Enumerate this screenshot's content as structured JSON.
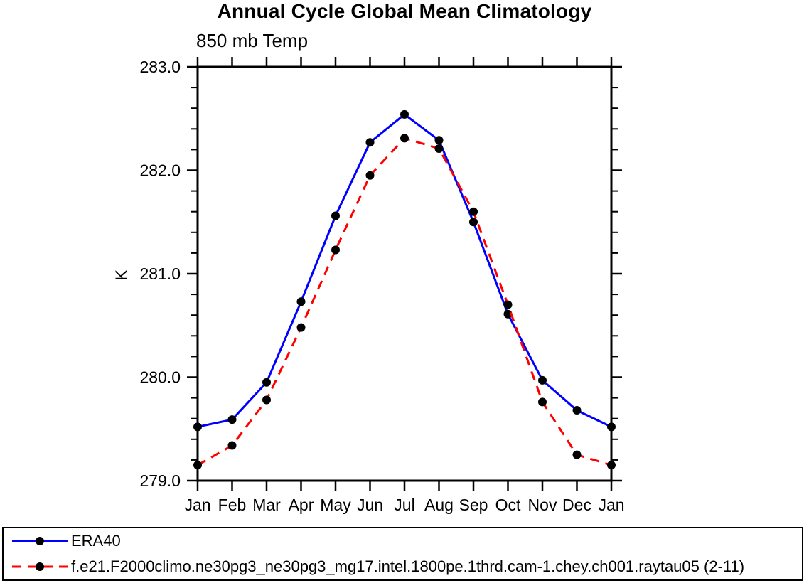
{
  "chart": {
    "title": "Annual Cycle Global Mean Climatology",
    "subtitle": "850 mb Temp",
    "ylabel": "K"
  },
  "chart_data": {
    "type": "line",
    "title": "Annual Cycle Global Mean Climatology",
    "subtitle": "850 mb Temp",
    "xlabel": "",
    "ylabel": "K",
    "categories": [
      "Jan",
      "Feb",
      "Mar",
      "Apr",
      "May",
      "Jun",
      "Jul",
      "Aug",
      "Sep",
      "Oct",
      "Nov",
      "Dec",
      "Jan"
    ],
    "series": [
      {
        "name": "ERA40",
        "color": "#0000ff",
        "line_style": "solid",
        "values": [
          279.52,
          279.59,
          279.95,
          280.73,
          281.56,
          282.27,
          282.54,
          282.29,
          281.5,
          280.61,
          279.97,
          279.68,
          279.52
        ]
      },
      {
        "name": "f.e21.F2000climo.ne30pg3_ne30pg3_mg17.intel.1800pe.1thrd.cam-1.chey.ch001.raytau05 (2-11)",
        "color": "#ff0000",
        "line_style": "dashed",
        "values": [
          279.15,
          279.34,
          279.78,
          280.48,
          281.23,
          281.95,
          282.31,
          282.21,
          281.6,
          280.7,
          279.76,
          279.25,
          279.15
        ]
      }
    ],
    "ylim": [
      279.0,
      283.0
    ],
    "ytick_values": [
      279,
      280,
      281,
      282,
      283
    ],
    "ytick_labels": [
      "279.0",
      "280.0",
      "281.0",
      "282.0",
      "283.0"
    ],
    "y_minor_step": 0.2,
    "marker": "filled-circle",
    "marker_color": "#000000",
    "grid": false,
    "legend_position": "bottom-box"
  }
}
